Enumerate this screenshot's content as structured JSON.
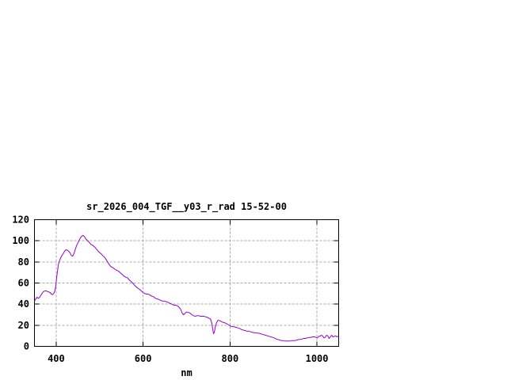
{
  "page": {
    "background": "#ffffff"
  },
  "chart_data": {
    "type": "line",
    "title": "sr_2026_004_TGF__y03_r_rad 15-52-00",
    "xlabel": "nm",
    "ylabel": "",
    "xlim": [
      350,
      1050
    ],
    "ylim": [
      0,
      120
    ],
    "xticks": [
      400,
      600,
      800,
      1000
    ],
    "yticks": [
      0,
      20,
      40,
      60,
      80,
      100,
      120
    ],
    "grid": true,
    "legend": false,
    "colors": {
      "line": "#9400d3",
      "grid": "#a8a8a8",
      "axis": "#000000",
      "text": "#000000",
      "background": "#ffffff"
    },
    "series": [
      {
        "x": [
          350,
          353,
          356,
          359,
          362,
          365,
          368,
          371,
          374,
          377,
          380,
          383,
          386,
          389,
          392,
          395,
          397,
          399,
          401,
          403,
          405,
          407,
          409,
          411,
          414,
          417,
          420,
          423,
          426,
          429,
          432,
          435,
          438,
          441,
          444,
          447,
          450,
          453,
          456,
          459,
          462,
          465,
          468,
          471,
          474,
          477,
          480,
          483,
          486,
          489,
          492,
          495,
          498,
          501,
          504,
          507,
          510,
          513,
          516,
          519,
          522,
          525,
          528,
          531,
          534,
          537,
          540,
          544,
          548,
          552,
          556,
          560,
          564,
          568,
          572,
          576,
          580,
          584,
          588,
          592,
          596,
          600,
          604,
          608,
          612,
          616,
          620,
          624,
          628,
          632,
          636,
          640,
          644,
          648,
          652,
          656,
          660,
          664,
          668,
          672,
          676,
          680,
          684,
          687,
          690,
          693,
          696,
          699,
          702,
          705,
          708,
          712,
          716,
          720,
          724,
          728,
          732,
          736,
          740,
          744,
          748,
          752,
          755,
          758,
          760,
          762,
          764,
          766,
          769,
          772,
          775,
          778,
          782,
          786,
          790,
          794,
          798,
          802,
          806,
          810,
          814,
          818,
          822,
          826,
          830,
          834,
          838,
          842,
          846,
          850,
          854,
          858,
          862,
          866,
          870,
          874,
          878,
          882,
          886,
          890,
          894,
          898,
          902,
          906,
          910,
          914,
          918,
          922,
          926,
          930,
          934,
          938,
          942,
          946,
          950,
          954,
          958,
          962,
          966,
          970,
          974,
          978,
          982,
          986,
          990,
          994,
          998,
          1001,
          1004,
          1007,
          1010,
          1013,
          1016,
          1019,
          1022,
          1025,
          1028,
          1031,
          1034,
          1037,
          1040,
          1043,
          1046,
          1048,
          1050
        ],
        "y": [
          42.5,
          45,
          46.5,
          45.5,
          46.5,
          48.5,
          50.5,
          52,
          52.5,
          52.5,
          52,
          51.5,
          51,
          49.5,
          49,
          50.5,
          52.5,
          57,
          65,
          71.5,
          77.5,
          80.5,
          82.5,
          84.5,
          86.5,
          88.5,
          90.5,
          91.5,
          91,
          90,
          88.5,
          86,
          85.5,
          88,
          92,
          95.5,
          98,
          100.5,
          103,
          104.5,
          105,
          104,
          102,
          100.5,
          99.5,
          98,
          96.5,
          96,
          95,
          94,
          92.5,
          91,
          89.5,
          88.5,
          87.5,
          86,
          85,
          83.5,
          81.5,
          79.5,
          77.5,
          76,
          75,
          74.5,
          73.5,
          72.5,
          72,
          71,
          69.5,
          68,
          66.5,
          65.5,
          65,
          63,
          61.5,
          60,
          58,
          56.5,
          55,
          54,
          52.5,
          51,
          50,
          49.5,
          49.5,
          48.5,
          47.5,
          47,
          45.5,
          45,
          44.5,
          43.5,
          43,
          43,
          42.5,
          42,
          41,
          40.5,
          39.5,
          39,
          39,
          38,
          36.5,
          34.5,
          31.5,
          30,
          31,
          32.5,
          32.5,
          32,
          31.5,
          30,
          29,
          28.5,
          29,
          29,
          28.5,
          28.5,
          28.5,
          28,
          27.5,
          26.5,
          26,
          22,
          17,
          12,
          13.5,
          18,
          22.5,
          24.5,
          24.5,
          24,
          23,
          22.5,
          22,
          21,
          20,
          19,
          18.5,
          18.5,
          18,
          17.5,
          17,
          16,
          15.5,
          15,
          14.5,
          14.5,
          14,
          13.5,
          13,
          13,
          12.5,
          12.5,
          12,
          11.5,
          11,
          10.5,
          10,
          9.5,
          9,
          8.5,
          8,
          7,
          6.5,
          6,
          5.5,
          5.5,
          5,
          5,
          5,
          5,
          5.5,
          5.5,
          5.5,
          6,
          6.5,
          6.5,
          7,
          7.5,
          7.5,
          8,
          8.5,
          8.5,
          9,
          9,
          8.5,
          8,
          9.5,
          9.5,
          10.5,
          10,
          8,
          8.5,
          10.5,
          10,
          7.5,
          9,
          10.5,
          9,
          9.5,
          10,
          9,
          9.5,
          9
        ]
      }
    ]
  }
}
